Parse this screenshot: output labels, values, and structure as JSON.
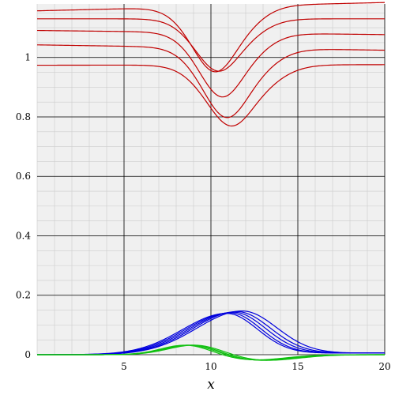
{
  "chart_data": {
    "type": "line",
    "title": "",
    "xlabel": "x",
    "ylabel": "",
    "xlim": [
      0,
      20
    ],
    "ylim": [
      0,
      1.18
    ],
    "grid": true,
    "x_ticks": [
      5,
      10,
      15,
      20
    ],
    "y_ticks": [
      0,
      0.2,
      0.4,
      0.6,
      0.8,
      1
    ],
    "x_tick_labels": [
      "5",
      "10",
      "15",
      "20"
    ],
    "y_tick_labels": [
      "0",
      "0.2",
      "0.4",
      "0.6",
      "0.8",
      "1"
    ],
    "colors": {
      "red": "#c00000",
      "blue": "#0000dd",
      "green": "#10c010",
      "major_grid": "#000000",
      "minor_grid": "#cccccc",
      "background": "#f0f0f0"
    },
    "series_groups": [
      {
        "color": "red",
        "curves": [
          {
            "params": [
              1.172,
              0.203,
              10.8,
              2.2,
              0.014,
              -0.43
            ]
          },
          {
            "params": [
              1.13,
              0.163,
              11.0,
              2.2,
              0.0,
              -0.43
            ]
          },
          {
            "params": [
              1.083,
              0.2,
              11.2,
              2.2,
              -0.007,
              -0.43
            ]
          },
          {
            "params": [
              1.032,
              0.216,
              11.5,
              2.3,
              -0.009,
              -0.43
            ]
          },
          {
            "params": [
              0.975,
              0.188,
              11.8,
              2.4,
              0.001,
              -0.43
            ]
          }
        ]
      },
      {
        "color": "blue",
        "curves": [
          {
            "params": [
              0.136,
              10.9,
              3.6,
              2.5
            ]
          },
          {
            "params": [
              0.138,
              11.1,
              3.6,
              2.5
            ]
          },
          {
            "params": [
              0.14,
              11.3,
              3.6,
              2.6
            ]
          },
          {
            "params": [
              0.142,
              11.5,
              3.6,
              2.7
            ]
          },
          {
            "params": [
              0.144,
              11.8,
              3.7,
              2.8
            ]
          }
        ]
      },
      {
        "color": "green",
        "curves": [
          {
            "params": [
              0.034,
              8.6,
              2.0,
              -0.018,
              12.4,
              2.6
            ]
          },
          {
            "params": [
              0.034,
              8.8,
              2.1,
              -0.019,
              12.6,
              2.6
            ]
          },
          {
            "params": [
              0.035,
              9.0,
              2.1,
              -0.02,
              12.8,
              2.7
            ]
          },
          {
            "params": [
              0.035,
              9.2,
              2.2,
              -0.02,
              13.0,
              2.8
            ]
          }
        ]
      }
    ]
  }
}
